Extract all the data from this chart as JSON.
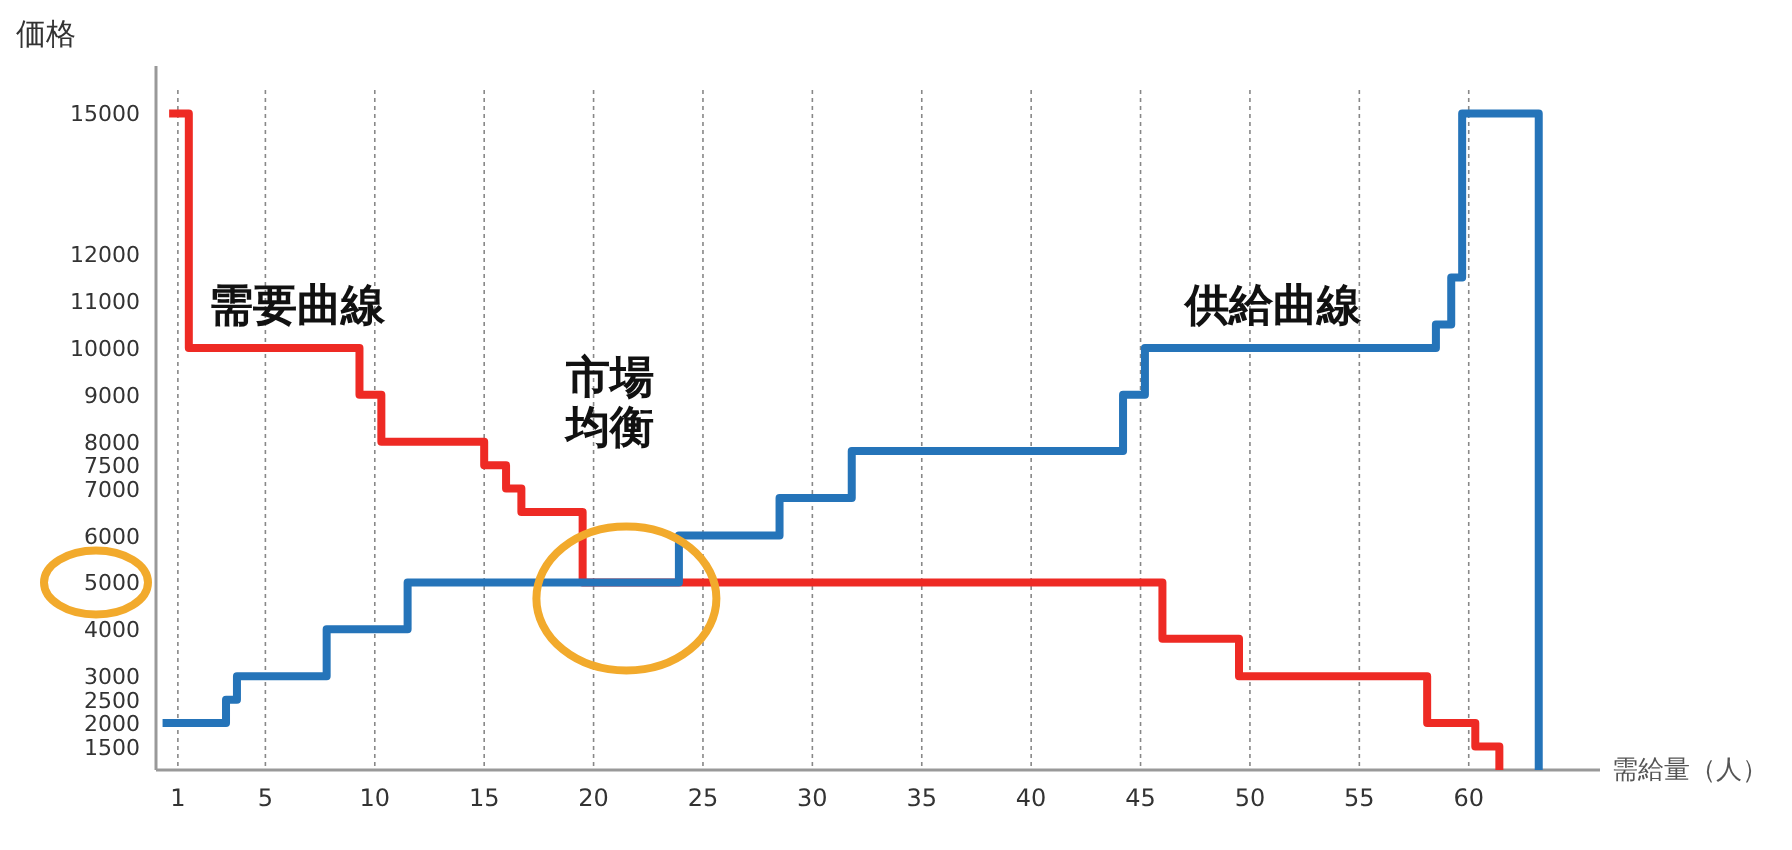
{
  "chart_data": {
    "type": "step",
    "ylabel": "価格",
    "xlabel": "需給量（人）",
    "xlim": [
      0,
      66
    ],
    "xticks": [
      1,
      5,
      10,
      15,
      20,
      25,
      30,
      35,
      40,
      45,
      50,
      55,
      60
    ],
    "ylim": [
      1000,
      15500
    ],
    "yticks": [
      1500,
      2000,
      2500,
      3000,
      4000,
      5000,
      6000,
      7000,
      7500,
      8000,
      9000,
      10000,
      11000,
      12000,
      15000
    ],
    "grid": "x",
    "line_style": "solid",
    "marker": "none",
    "series": [
      {
        "name": "需要曲線",
        "color": "#ee2a24",
        "x": [
          0.6,
          1.5,
          9.3,
          10.3,
          15,
          16,
          16.7,
          19.5,
          46,
          49.5,
          58.1,
          60.3,
          61.4
        ],
        "values": [
          15000,
          10000,
          9000,
          8000,
          7500,
          7000,
          6500,
          5000,
          3800,
          3000,
          2000,
          1500,
          1000
        ]
      },
      {
        "name": "供給曲線",
        "color": "#2574b9",
        "x": [
          0.3,
          3.2,
          3.7,
          7.8,
          11.5,
          23.9,
          28.5,
          31.8,
          44.2,
          45.2,
          58.5,
          59.2,
          59.7,
          63.2
        ],
        "values": [
          2000,
          2500,
          3000,
          4000,
          5000,
          6000,
          6800,
          7800,
          9000,
          10000,
          10500,
          11500,
          15000,
          1000
        ]
      }
    ],
    "annotations": [
      {
        "text": "市場均衡",
        "x": 21.5,
        "y": 5000
      }
    ]
  }
}
